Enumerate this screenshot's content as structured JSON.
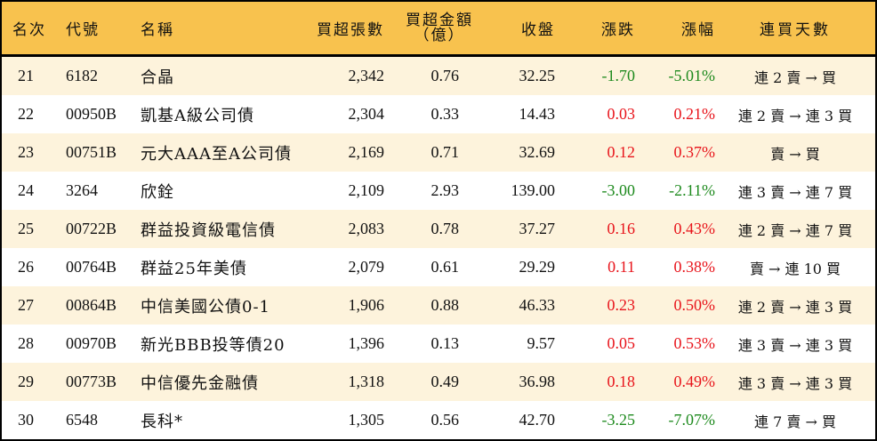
{
  "header": {
    "rank": "名次",
    "code": "代號",
    "name": "名稱",
    "buy_lots": "買超張數",
    "buy_amount_line1": "買超金額",
    "buy_amount_line2": "（億）",
    "close": "收盤",
    "change": "漲跌",
    "change_pct": "漲幅",
    "streak": "連買天數"
  },
  "colors": {
    "header_bg": "#F8C24E",
    "alt_row_bg": "#FDF3DC",
    "up": "#E8141B",
    "down": "#1E8A1E",
    "border": "#000000"
  },
  "rows": [
    {
      "rank": "21",
      "code": "6182",
      "name": "合晶",
      "buy_lots": "2,342",
      "buy_amount": "0.76",
      "close": "32.25",
      "change": "-1.70",
      "change_pct": "-5.01%",
      "direction": "down",
      "streak": "連 2 賣 → 買"
    },
    {
      "rank": "22",
      "code": "00950B",
      "name": "凱基A級公司債",
      "buy_lots": "2,304",
      "buy_amount": "0.33",
      "close": "14.43",
      "change": "0.03",
      "change_pct": "0.21%",
      "direction": "up",
      "streak": "連 2 賣 → 連 3 買"
    },
    {
      "rank": "23",
      "code": "00751B",
      "name": "元大AAA至A公司債",
      "buy_lots": "2,169",
      "buy_amount": "0.71",
      "close": "32.69",
      "change": "0.12",
      "change_pct": "0.37%",
      "direction": "up",
      "streak": "賣 → 買"
    },
    {
      "rank": "24",
      "code": "3264",
      "name": "欣銓",
      "buy_lots": "2,109",
      "buy_amount": "2.93",
      "close": "139.00",
      "change": "-3.00",
      "change_pct": "-2.11%",
      "direction": "down",
      "streak": "連 3 賣 → 連 7 買"
    },
    {
      "rank": "25",
      "code": "00722B",
      "name": "群益投資級電信債",
      "buy_lots": "2,083",
      "buy_amount": "0.78",
      "close": "37.27",
      "change": "0.16",
      "change_pct": "0.43%",
      "direction": "up",
      "streak": "連 2 賣 → 連 7 買"
    },
    {
      "rank": "26",
      "code": "00764B",
      "name": "群益25年美債",
      "buy_lots": "2,079",
      "buy_amount": "0.61",
      "close": "29.29",
      "change": "0.11",
      "change_pct": "0.38%",
      "direction": "up",
      "streak": "賣 → 連 10 買"
    },
    {
      "rank": "27",
      "code": "00864B",
      "name": "中信美國公債0-1",
      "buy_lots": "1,906",
      "buy_amount": "0.88",
      "close": "46.33",
      "change": "0.23",
      "change_pct": "0.50%",
      "direction": "up",
      "streak": "連 2 賣 → 連 3 買"
    },
    {
      "rank": "28",
      "code": "00970B",
      "name": "新光BBB投等債20",
      "buy_lots": "1,396",
      "buy_amount": "0.13",
      "close": "9.57",
      "change": "0.05",
      "change_pct": "0.53%",
      "direction": "up",
      "streak": "連 3 賣 → 連 3 買"
    },
    {
      "rank": "29",
      "code": "00773B",
      "name": "中信優先金融債",
      "buy_lots": "1,318",
      "buy_amount": "0.49",
      "close": "36.98",
      "change": "0.18",
      "change_pct": "0.49%",
      "direction": "up",
      "streak": "連 3 賣 → 連 3 買"
    },
    {
      "rank": "30",
      "code": "6548",
      "name": "長科*",
      "buy_lots": "1,305",
      "buy_amount": "0.56",
      "close": "42.70",
      "change": "-3.25",
      "change_pct": "-7.07%",
      "direction": "down",
      "streak": "連 7 賣 → 買"
    }
  ]
}
